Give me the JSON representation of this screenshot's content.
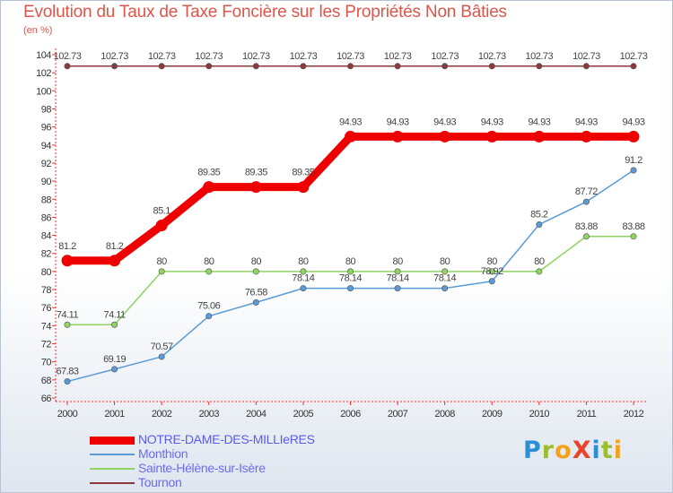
{
  "title": "Evolution du Taux de Taxe Foncière sur les Propriétés Non Bâties",
  "unit_label": "(en %)",
  "logo": {
    "text": "ProXiti",
    "letters": [
      {
        "char": "P",
        "color": "#2b8fd6"
      },
      {
        "char": "r",
        "color": "#9bbe2e"
      },
      {
        "char": "o",
        "color": "#f2a31b"
      },
      {
        "char": "X",
        "color": "#e8452c"
      },
      {
        "char": "i",
        "color": "#2b8fd6"
      },
      {
        "char": "t",
        "color": "#9bbe2e"
      },
      {
        "char": "i",
        "color": "#f2a31b"
      }
    ]
  },
  "chart_data": {
    "type": "line",
    "title": "Evolution du Taux de Taxe Foncière sur les Propriétés Non Bâties",
    "ylabel": "(en %)",
    "xlabel": "",
    "x": [
      "2000",
      "2001",
      "2002",
      "2003",
      "2004",
      "2005",
      "2006",
      "2007",
      "2008",
      "2009",
      "2010",
      "2011",
      "2012"
    ],
    "ylim": [
      66,
      104
    ],
    "yticks": [
      66,
      68,
      70,
      72,
      74,
      76,
      78,
      80,
      82,
      84,
      86,
      88,
      90,
      92,
      94,
      96,
      98,
      100,
      102,
      104
    ],
    "grid": false,
    "legend_position": "bottom-left",
    "series": [
      {
        "name": "NOTRE-DAME-DES-MILLIeRES",
        "color": "#ee0000",
        "emphasis": true,
        "values": [
          81.2,
          81.2,
          85.1,
          89.35,
          89.35,
          89.35,
          94.93,
          94.93,
          94.93,
          94.93,
          94.93,
          94.93,
          94.93
        ],
        "labels": [
          "81.2",
          "81.2",
          "85.1",
          "89.35",
          "89.35",
          "89.35",
          "94.93",
          "94.93",
          "94.93",
          "94.93",
          "94.93",
          "94.93",
          "94.93"
        ]
      },
      {
        "name": "Monthion",
        "color": "#5b9bd5",
        "emphasis": false,
        "values": [
          67.83,
          69.19,
          70.57,
          75.06,
          76.58,
          78.14,
          78.14,
          78.14,
          78.14,
          78.92,
          85.2,
          87.72,
          91.2
        ],
        "labels": [
          "67.83",
          "69.19",
          "70.57",
          "75.06",
          "76.58",
          "78.14",
          "78.14",
          "78.14",
          "78.14",
          "78.92",
          "85.2",
          "87.72",
          "91.2"
        ]
      },
      {
        "name": "Sainte-Hélène-sur-Isère",
        "color": "#8fd460",
        "emphasis": false,
        "values": [
          74.11,
          74.11,
          80,
          80,
          80,
          80,
          80,
          80,
          80,
          80,
          80,
          83.88,
          83.88
        ],
        "labels": [
          "74.11",
          "74.11",
          "80",
          "80",
          "80",
          "80",
          "80",
          "80",
          "80",
          "80",
          "80",
          "83.88",
          "83.88"
        ]
      },
      {
        "name": "Tournon",
        "color": "#8b3a3a",
        "emphasis": false,
        "values": [
          102.73,
          102.73,
          102.73,
          102.73,
          102.73,
          102.73,
          102.73,
          102.73,
          102.73,
          102.73,
          102.73,
          102.73,
          102.73
        ],
        "labels": [
          "102.73",
          "102.73",
          "102.73",
          "102.73",
          "102.73",
          "102.73",
          "102.73",
          "102.73",
          "102.73",
          "102.73",
          "102.73",
          "102.73",
          "102.73"
        ]
      }
    ]
  }
}
